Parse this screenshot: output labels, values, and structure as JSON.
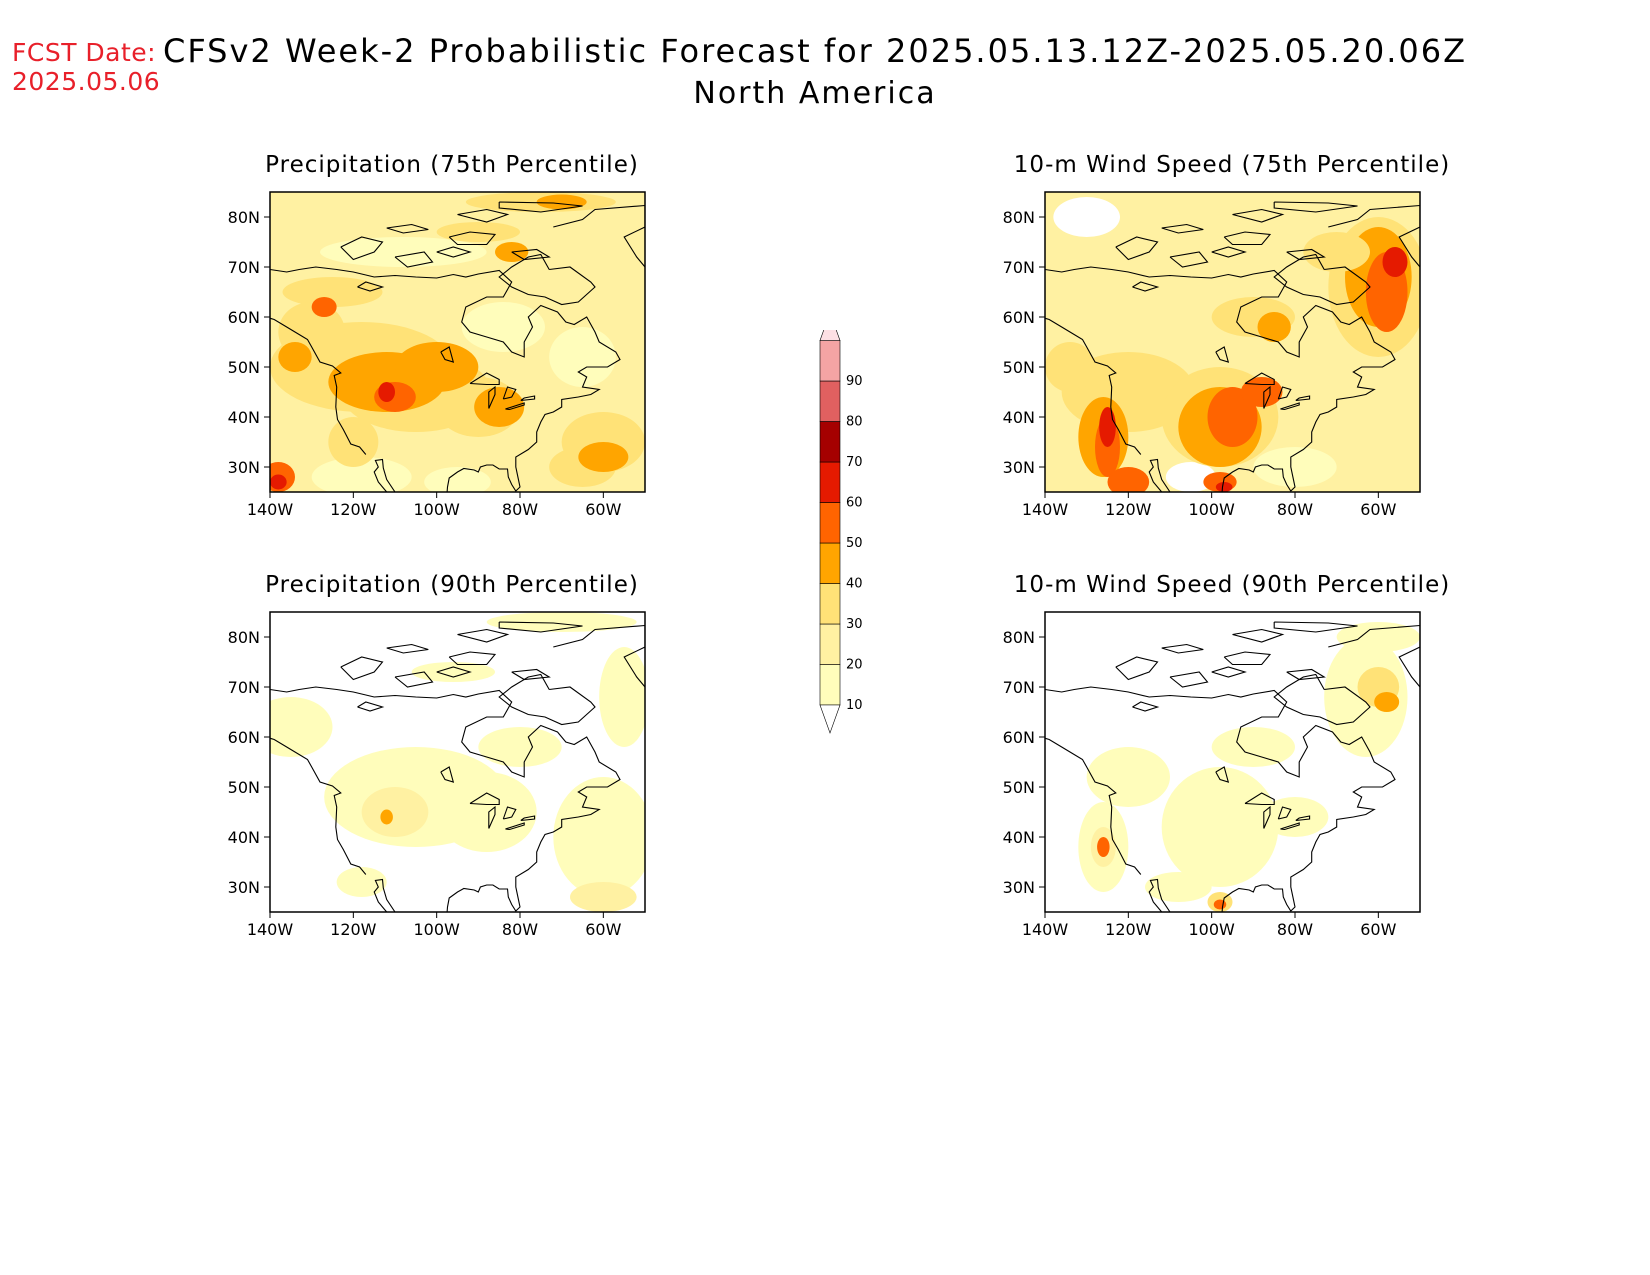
{
  "forecast_date": {
    "label": "FCST Date:",
    "value": "2025.05.06"
  },
  "title": "CFSv2 Week-2 Probabilistic Forecast for 2025.05.13.12Z-2025.05.20.06Z",
  "subtitle": "North America",
  "panels": [
    {
      "id": "precip75",
      "title": "Precipitation (75th Percentile)"
    },
    {
      "id": "wind75",
      "title": "10-m Wind Speed (75th Percentile)"
    },
    {
      "id": "precip90",
      "title": "Precipitation (90th Percentile)"
    },
    {
      "id": "wind90",
      "title": "10-m Wind Speed (90th Percentile)"
    }
  ],
  "axes": {
    "lat_labels": [
      "80N",
      "70N",
      "60N",
      "50N",
      "40N",
      "30N"
    ],
    "lon_labels": [
      "140W",
      "120W",
      "100W",
      "80W",
      "60W"
    ]
  },
  "colorbar": {
    "levels": [
      "10",
      "20",
      "30",
      "40",
      "50",
      "60",
      "70",
      "80",
      "90"
    ],
    "colors": [
      "#fffdbb",
      "#fff1a2",
      "#ffe277",
      "#ffa500",
      "#ff6400",
      "#e51a00",
      "#a50000",
      "#e06060",
      "#f4a4a4",
      "#fde0e4"
    ]
  }
}
